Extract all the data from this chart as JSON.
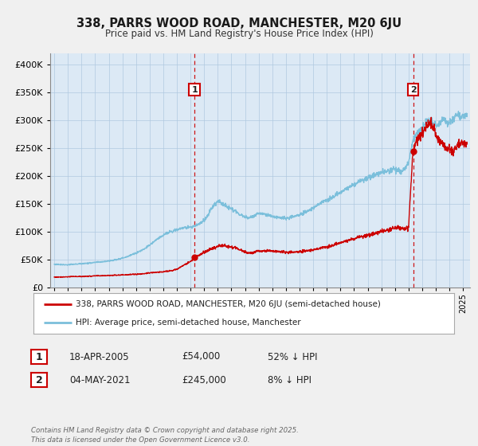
{
  "title": "338, PARRS WOOD ROAD, MANCHESTER, M20 6JU",
  "subtitle": "Price paid vs. HM Land Registry's House Price Index (HPI)",
  "hpi_label": "HPI: Average price, semi-detached house, Manchester",
  "property_label": "338, PARRS WOOD ROAD, MANCHESTER, M20 6JU (semi-detached house)",
  "hpi_color": "#7bbfdb",
  "property_color": "#cc0000",
  "annotation1_date": 2005.29,
  "annotation1_value": 54000,
  "annotation2_date": 2021.34,
  "annotation2_value": 245000,
  "table_row1": [
    "1",
    "18-APR-2005",
    "£54,000",
    "52% ↓ HPI"
  ],
  "table_row2": [
    "2",
    "04-MAY-2021",
    "£245,000",
    "8% ↓ HPI"
  ],
  "footer": "Contains HM Land Registry data © Crown copyright and database right 2025.\nThis data is licensed under the Open Government Licence v3.0.",
  "ylim": [
    0,
    420000
  ],
  "xlim_start": 1994.7,
  "xlim_end": 2025.5,
  "background_color": "#f0f0f0",
  "plot_bg_color": "#dce9f5",
  "grid_color": "#b0c8e0"
}
